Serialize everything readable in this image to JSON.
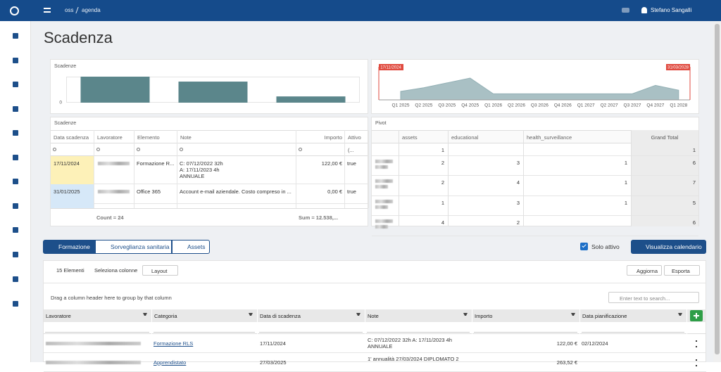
{
  "topbar": {
    "breadcrumb": [
      "oss",
      "agenda"
    ],
    "user": "Stefano Sangalli"
  },
  "title": "Scadenza",
  "chart_data": [
    {
      "type": "bar",
      "title": "Scadenze",
      "values": [
        10,
        8.1,
        2.4
      ],
      "color": "#5b868b",
      "ylim": [
        0,
        10
      ],
      "yticks": [
        0
      ]
    },
    {
      "type": "area",
      "categories": [
        "Q1 2025",
        "Q2 2025",
        "Q3 2025",
        "Q4 2025",
        "Q1 2026",
        "Q2 2026",
        "Q3 2026",
        "Q4 2026",
        "Q1 2027",
        "Q2 2027",
        "Q3 2027",
        "Q4 2027",
        "Q1 2028"
      ],
      "values": [
        7,
        10,
        14,
        18,
        5,
        5,
        5,
        5,
        5,
        5,
        5,
        12,
        8
      ],
      "color": "#a9c0c4",
      "ylim": [
        0,
        25
      ],
      "annotations": [
        "17/11/2024",
        "31/03/2028"
      ]
    }
  ],
  "scadenze_grid": {
    "title": "Scadenze",
    "columns": [
      "Data scadenza",
      "Lavoratore",
      "Elemento",
      "Note",
      "Importo",
      "Attivo"
    ],
    "filter": "(...",
    "rows": [
      {
        "date": "17/11/2024",
        "element": "Formazione R...",
        "note": [
          "C: 07/12/2022 32h",
          "A: 17/11/2023 4h",
          "ANNUALE"
        ],
        "amount": "122,00 €",
        "active": "true"
      },
      {
        "date": "31/01/2025",
        "element": "Office 365",
        "note": [
          "Account e-mail aziendale. Costo compreso in ..."
        ],
        "amount": "0,00 €",
        "active": "true"
      }
    ],
    "count": "Count = 24",
    "sum": "Sum = 12.538,..."
  },
  "pivot": {
    "title": "Pivot",
    "columns": [
      "assets",
      "educational",
      "health_surveillance"
    ],
    "total_label": "Grand Total",
    "rows": [
      {
        "values": [
          1,
          null,
          null
        ],
        "total": 1
      },
      {
        "values": [
          2,
          3,
          1
        ],
        "total": 6
      },
      {
        "values": [
          2,
          4,
          1
        ],
        "total": 7
      },
      {
        "values": [
          1,
          3,
          1
        ],
        "total": 5
      },
      {
        "values": [
          4,
          2,
          null
        ],
        "total": 6
      }
    ]
  },
  "tabs": [
    "Formazione",
    "Sorveglianza sanitaria",
    "Assets"
  ],
  "solo_attivo": "Solo attivo",
  "calendar_button": "Visualizza calendario",
  "grid": {
    "toolbar": {
      "count": "15 Elementi",
      "columns": "Seleziona colonne",
      "layout": "Layout",
      "refresh": "Aggiorna",
      "export": "Esporta"
    },
    "group_hint": "Drag a column header here to group by that column",
    "search_placeholder": "Enter text to search...",
    "columns": [
      "Lavoratore",
      "Categoria",
      "Data di scadenza",
      "Note",
      "Importo",
      "Data pianificazione"
    ],
    "rows": [
      {
        "category": "Formazione RLS",
        "date": "17/11/2024",
        "note": [
          "C: 07/12/2022 32h A: 17/11/2023 4h",
          "ANNUALE"
        ],
        "amount": "122,00 €",
        "planned": "02/12/2024"
      },
      {
        "category": "Apprendistato",
        "date": "27/03/2025",
        "note": [
          "1' annualità 27/03/2024 DIPLOMATO 2"
        ],
        "amount": "263,52 €"
      }
    ]
  }
}
